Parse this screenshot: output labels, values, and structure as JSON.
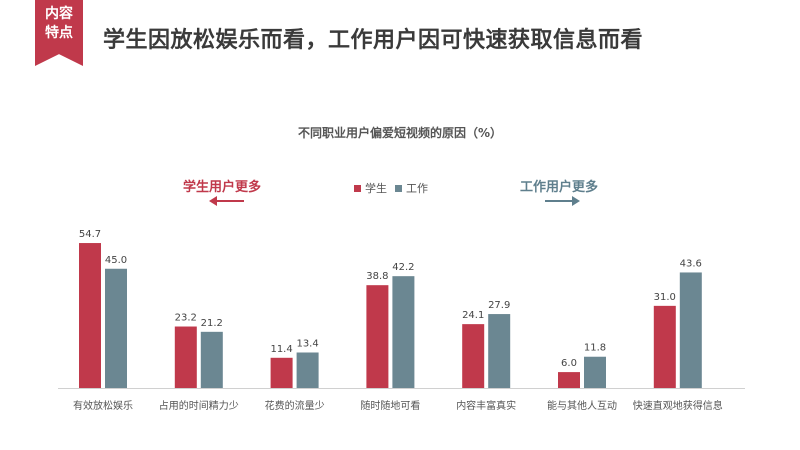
{
  "badge": {
    "line1": "内容",
    "line2": "特点",
    "color": "#c0394b"
  },
  "page_title": "学生因放松娱乐而看，工作用户因可快速获取信息而看",
  "callouts": {
    "left": "学生用户更多",
    "right": "工作用户更多"
  },
  "legend": {
    "student": "学生",
    "worker": "工作"
  },
  "colors": {
    "student": "#c0394b",
    "worker": "#6b8792"
  },
  "chart_data": {
    "type": "bar",
    "title": "不同职业用户偏爱短视频的原因（%）",
    "xlabel": "",
    "ylabel": "",
    "ylim": [
      0,
      60
    ],
    "grid": false,
    "legend_position": "top-center",
    "categories": [
      "有效放松娱乐",
      "占用的时间精力少",
      "花费的流量少",
      "随时随地可看",
      "内容丰富真实",
      "能与其他人互动",
      "快速直观地获得信息"
    ],
    "series": [
      {
        "name": "学生",
        "values": [
          54.7,
          23.2,
          11.4,
          38.8,
          24.1,
          6.0,
          31.0
        ],
        "labels": [
          "54.7",
          "23.2",
          "11.4",
          "38.8",
          "24.1",
          "6.0",
          "31.0"
        ]
      },
      {
        "name": "工作",
        "values": [
          45.0,
          21.2,
          13.4,
          42.2,
          27.9,
          11.8,
          43.6
        ],
        "labels": [
          "45.0",
          "21.2",
          "13.4",
          "42.2",
          "27.9",
          "11.8",
          "43.6"
        ]
      }
    ]
  }
}
